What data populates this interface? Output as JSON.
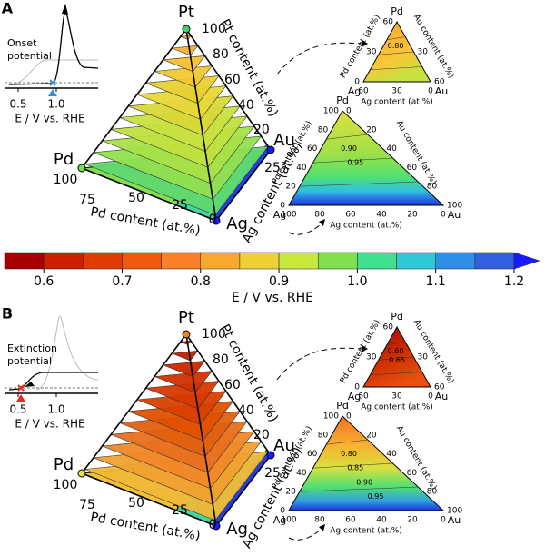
{
  "colorbar": {
    "range": [
      0.55,
      1.2
    ],
    "colors": [
      "#a80000",
      "#cc2000",
      "#e03c00",
      "#f05a10",
      "#f88028",
      "#f8a830",
      "#f0d038",
      "#c8e840",
      "#80e050",
      "#40e090",
      "#30c8d8",
      "#3090e8",
      "#3060e0"
    ],
    "extend_color": "#1a1aff",
    "ticks": [
      0.6,
      0.7,
      0.8,
      0.9,
      {
        "value": 1,
        "label": "1.0"
      },
      1.1,
      1.2
    ],
    "label": "E / V vs. RHE"
  },
  "panels": [
    {
      "label": "A",
      "inset": {
        "title": [
          "Onset",
          "potential"
        ],
        "xlabel": "E / V vs. RHE",
        "xticks": [
          0.5,
          {
            "value": 1,
            "label": "1.0"
          }
        ]
      },
      "pyramid": {
        "apex": "Pt",
        "left": "Pd",
        "right": "Au",
        "front": "Ag",
        "pt_ticks": [
          100,
          80,
          60,
          40,
          20
        ],
        "pd_ticks": [
          100,
          75,
          50,
          25,
          0
        ],
        "ag_ticks": [
          25
        ],
        "pt_label": "Pt content (at.%)",
        "pd_label": "Pd content (at.%)",
        "ag_label": "Ag content (at.%)"
      },
      "small_ternary": {
        "top": "Pd",
        "left": "Ag",
        "right": "Au",
        "left_ticks": [
          60,
          30,
          0
        ],
        "right_ticks": [
          30,
          60
        ],
        "bottom_ticks": [
          60,
          30,
          0
        ],
        "left_label": "Pd content (at.%)",
        "right_label": "Au content (at.%)",
        "bottom_label": "Ag content (at.%)",
        "contours": [
          "0.80"
        ]
      },
      "large_ternary": {
        "top": "Pd",
        "left": "Ag",
        "right": "Au",
        "left_ticks": [
          100,
          80,
          60,
          40,
          20,
          0
        ],
        "right_ticks": [
          0,
          20,
          40,
          60,
          80,
          100
        ],
        "bottom_ticks": [
          100,
          80,
          60,
          40,
          20,
          0
        ],
        "left_label": "Pd content (at.%)",
        "right_label": "Au content (at.%)",
        "bottom_label": "Ag content (at.%)",
        "contours": [
          "0.90",
          "0.95"
        ]
      }
    },
    {
      "label": "B",
      "inset": {
        "title": [
          "Extinction",
          "potential"
        ],
        "xlabel": "E / V vs. RHE",
        "xticks": [
          0.5,
          {
            "value": 1,
            "label": "1.0"
          }
        ]
      },
      "pyramid": {
        "apex": "Pt",
        "left": "Pd",
        "right": "Au",
        "front": "Ag",
        "pt_ticks": [
          100,
          80,
          60,
          40,
          20
        ],
        "pd_ticks": [
          100,
          75,
          50,
          25,
          0
        ],
        "ag_ticks": [
          25
        ],
        "pt_label": "Pt content (at.%)",
        "pd_label": "Pd content (at.%)",
        "ag_label": "Ag content (at.%)"
      },
      "small_ternary": {
        "top": "Pd",
        "left": "Ag",
        "right": "Au",
        "left_ticks": [
          60,
          30,
          0
        ],
        "right_ticks": [
          30,
          60
        ],
        "bottom_ticks": [
          60,
          30,
          0
        ],
        "left_label": "Pd content (at.%)",
        "right_label": "Au content (at.%)",
        "bottom_label": "Ag content (at.%)",
        "contours": [
          "0.60",
          "0.65"
        ]
      },
      "large_ternary": {
        "top": "Pd",
        "left": "Ag",
        "right": "Au",
        "left_ticks": [
          100,
          80,
          60,
          40,
          20,
          0
        ],
        "right_ticks": [
          0,
          20,
          40,
          60,
          80,
          100
        ],
        "bottom_ticks": [
          100,
          80,
          60,
          40,
          20,
          0
        ],
        "left_label": "Pd content (at.%)",
        "right_label": "Au content (at.%)",
        "bottom_label": "Ag content (at.%)",
        "contours": [
          "0.80",
          "0.85",
          "0.90",
          "0.95"
        ]
      }
    }
  ]
}
